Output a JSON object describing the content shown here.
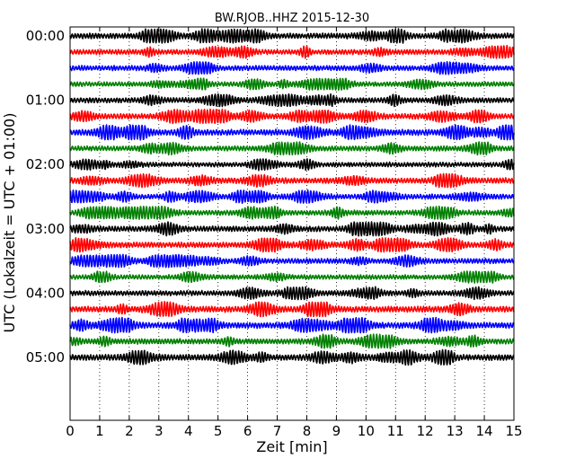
{
  "chart_data": {
    "type": "line",
    "title": "BW.RJOB..HHZ 2015-12-30",
    "xlabel": "Zeit  [min]",
    "ylabel": "UTC (Lokalzeit = UTC + 01:00)",
    "xlim": [
      0,
      15
    ],
    "xticks": [
      "0",
      "1",
      "2",
      "3",
      "4",
      "5",
      "6",
      "7",
      "8",
      "9",
      "10",
      "11",
      "12",
      "13",
      "14",
      "15"
    ],
    "yticks": [
      "00:00",
      "01:00",
      "02:00",
      "03:00",
      "04:00",
      "05:00"
    ],
    "trace_colors": [
      "#000000",
      "#ff0000",
      "#0000ff",
      "#008000"
    ],
    "grid": "vertical-dotted",
    "traces": [
      {
        "start": "00:00",
        "amplitude": 0.55
      },
      {
        "start": "00:15",
        "amplitude": 0.5
      },
      {
        "start": "00:30",
        "amplitude": 0.5
      },
      {
        "start": "00:45",
        "amplitude": 0.45
      },
      {
        "start": "01:00",
        "amplitude": 0.5
      },
      {
        "start": "01:15",
        "amplitude": 0.55
      },
      {
        "start": "01:30",
        "amplitude": 0.6
      },
      {
        "start": "01:45",
        "amplitude": 0.5
      },
      {
        "start": "02:00",
        "amplitude": 0.45
      },
      {
        "start": "02:15",
        "amplitude": 0.55
      },
      {
        "start": "02:30",
        "amplitude": 0.5
      },
      {
        "start": "02:45",
        "amplitude": 0.5
      },
      {
        "start": "03:00",
        "amplitude": 0.55
      },
      {
        "start": "03:15",
        "amplitude": 0.55
      },
      {
        "start": "03:30",
        "amplitude": 0.5
      },
      {
        "start": "03:45",
        "amplitude": 0.45
      },
      {
        "start": "04:00",
        "amplitude": 0.5
      },
      {
        "start": "04:15",
        "amplitude": 0.6
      },
      {
        "start": "04:30",
        "amplitude": 0.6
      },
      {
        "start": "04:45",
        "amplitude": 0.55
      },
      {
        "start": "05:00",
        "amplitude": 0.6
      }
    ]
  }
}
